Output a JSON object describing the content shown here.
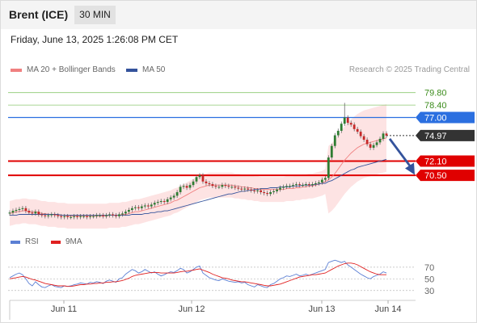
{
  "header": {
    "instrument": "Brent (ICE)",
    "timeframe": "30 MIN"
  },
  "datetime": "Friday, June 13, 2025 1:26:08 PM CET",
  "legend": {
    "ma20": {
      "label": "MA 20 + Bollinger Bands",
      "color": "#f08080"
    },
    "ma50": {
      "label": "MA 50",
      "color": "#34539c"
    }
  },
  "copyright": "Research © 2025 Trading Central",
  "rsi_legend": {
    "rsi": {
      "label": "RSI",
      "color": "#5b7fd4"
    },
    "ma9": {
      "label": "9MA",
      "color": "#e02020"
    }
  },
  "chart_data": [
    {
      "type": "candlestick",
      "title": "",
      "x_ticks": [
        "Jun 11",
        "Jun 12",
        "Jun 13",
        "Jun 14"
      ],
      "ylim": [
        64.6,
        81.5
      ],
      "price_levels": [
        {
          "value": 79.8,
          "label": "79.80",
          "kind": "target",
          "color": "#3c8c1c"
        },
        {
          "value": 78.4,
          "label": "78.40",
          "kind": "target",
          "color": "#3c8c1c"
        },
        {
          "value": 77.0,
          "label": "77.00",
          "kind": "pivot",
          "color": "#2b6fe0"
        },
        {
          "value": 74.97,
          "label": "74.97",
          "kind": "last",
          "color": "#333333"
        },
        {
          "value": 72.1,
          "label": "72.10",
          "kind": "support",
          "color": "#e00000"
        },
        {
          "value": 70.5,
          "label": "70.50",
          "kind": "support",
          "color": "#e00000"
        }
      ],
      "close": [
        66.3,
        66.5,
        66.6,
        66.7,
        66.8,
        66.5,
        66.3,
        66.2,
        66.4,
        66.1,
        66.0,
        65.9,
        66.0,
        66.1,
        66.0,
        65.9,
        65.8,
        65.9,
        65.8,
        65.8,
        65.9,
        65.8,
        65.9,
        65.9,
        65.8,
        65.9,
        65.9,
        66.0,
        66.0,
        65.9,
        66.0,
        66.1,
        66.0,
        65.9,
        66.1,
        66.2,
        66.4,
        66.6,
        66.8,
        66.9,
        66.8,
        67.0,
        67.1,
        67.0,
        67.2,
        67.4,
        67.5,
        67.6,
        67.5,
        67.8,
        68.0,
        68.2,
        68.6,
        69.2,
        69.3,
        69.1,
        69.4,
        69.8,
        70.3,
        70.5,
        69.8,
        69.6,
        69.5,
        69.3,
        69.2,
        69.2,
        69.4,
        69.3,
        69.2,
        69.2,
        69.1,
        69.0,
        68.9,
        69.0,
        68.9,
        68.8,
        68.7,
        68.8,
        68.6,
        68.5,
        68.4,
        68.6,
        68.7,
        68.9,
        69.1,
        69.2,
        69.3,
        69.3,
        69.4,
        69.5,
        69.4,
        69.4,
        69.5,
        69.4,
        69.5,
        69.6,
        69.7,
        70.0,
        70.2,
        72.5,
        73.8,
        75.0,
        75.5,
        76.3,
        77.0,
        76.4,
        76.2,
        75.7,
        75.4,
        74.9,
        74.5,
        74.0,
        73.6,
        73.9,
        74.2,
        74.6,
        75.2,
        74.97
      ],
      "ma20": [
        66.2,
        66.3,
        66.4,
        66.4,
        66.5,
        66.5,
        66.4,
        66.4,
        66.4,
        66.3,
        66.2,
        66.2,
        66.1,
        66.1,
        66.1,
        66.0,
        66.0,
        66.0,
        65.9,
        65.9,
        65.9,
        65.9,
        65.9,
        65.9,
        65.9,
        65.9,
        65.9,
        65.9,
        65.9,
        65.9,
        65.9,
        66.0,
        66.0,
        66.0,
        66.0,
        66.1,
        66.1,
        66.2,
        66.3,
        66.4,
        66.4,
        66.5,
        66.6,
        66.7,
        66.8,
        66.9,
        67.0,
        67.1,
        67.2,
        67.3,
        67.4,
        67.6,
        67.7,
        67.9,
        68.1,
        68.3,
        68.5,
        68.7,
        68.9,
        69.1,
        69.2,
        69.3,
        69.4,
        69.4,
        69.4,
        69.4,
        69.4,
        69.4,
        69.4,
        69.4,
        69.3,
        69.3,
        69.2,
        69.2,
        69.1,
        69.1,
        69.0,
        69.0,
        68.9,
        68.9,
        68.9,
        68.9,
        68.9,
        68.9,
        68.9,
        68.9,
        69.0,
        69.0,
        69.0,
        69.1,
        69.1,
        69.2,
        69.2,
        69.3,
        69.3,
        69.4,
        69.5,
        69.6,
        69.8,
        70.0,
        70.3,
        70.7,
        71.2,
        71.7,
        72.2,
        72.6,
        73.0,
        73.3,
        73.6,
        73.8,
        74.0,
        74.1,
        74.2,
        74.3,
        74.4,
        74.5,
        74.6,
        74.7
      ],
      "ma50": [
        66.0,
        66.0,
        66.0,
        66.1,
        66.1,
        66.1,
        66.1,
        66.1,
        66.1,
        66.1,
        66.1,
        66.1,
        66.1,
        66.1,
        66.1,
        66.1,
        66.0,
        66.0,
        66.0,
        66.0,
        66.0,
        66.0,
        66.0,
        66.0,
        66.0,
        66.0,
        66.0,
        66.0,
        66.0,
        66.0,
        66.0,
        66.0,
        66.0,
        66.0,
        66.0,
        66.0,
        66.0,
        66.0,
        66.1,
        66.1,
        66.1,
        66.1,
        66.2,
        66.2,
        66.3,
        66.3,
        66.4,
        66.4,
        66.5,
        66.5,
        66.6,
        66.7,
        66.8,
        66.9,
        67.0,
        67.1,
        67.2,
        67.3,
        67.4,
        67.5,
        67.6,
        67.7,
        67.8,
        67.9,
        68.0,
        68.1,
        68.2,
        68.3,
        68.4,
        68.4,
        68.5,
        68.6,
        68.7,
        68.7,
        68.8,
        68.8,
        68.9,
        68.9,
        69.0,
        69.0,
        69.0,
        69.1,
        69.1,
        69.1,
        69.2,
        69.2,
        69.2,
        69.2,
        69.3,
        69.3,
        69.3,
        69.4,
        69.4,
        69.4,
        69.4,
        69.5,
        69.5,
        69.6,
        69.6,
        69.8,
        69.9,
        70.1,
        70.3,
        70.5,
        70.7,
        70.9,
        71.1,
        71.2,
        71.4,
        71.5,
        71.6,
        71.7,
        71.8,
        71.9,
        72.0,
        72.1,
        72.2,
        72.3
      ]
    },
    {
      "type": "line",
      "title": "RSI",
      "x_ticks": [
        "Jun 11",
        "Jun 12",
        "Jun 13",
        "Jun 14"
      ],
      "ylim": [
        20,
        85
      ],
      "y_ticks": [
        70,
        50,
        30
      ],
      "series": [
        {
          "name": "RSI",
          "color": "#5b7fd4",
          "values": [
            52,
            55,
            58,
            60,
            57,
            50,
            42,
            38,
            45,
            40,
            36,
            35,
            38,
            40,
            37,
            36,
            35,
            38,
            37,
            38,
            40,
            41,
            43,
            42,
            41,
            44,
            43,
            45,
            44,
            42,
            46,
            48,
            46,
            44,
            50,
            52,
            58,
            62,
            66,
            64,
            60,
            62,
            66,
            63,
            60,
            62,
            58,
            55,
            57,
            60,
            62,
            61,
            64,
            68,
            66,
            60,
            62,
            66,
            70,
            72,
            60,
            56,
            52,
            50,
            48,
            47,
            50,
            48,
            46,
            45,
            44,
            45,
            43,
            44,
            40,
            38,
            36,
            40,
            38,
            36,
            35,
            40,
            42,
            46,
            50,
            52,
            55,
            54,
            56,
            58,
            55,
            56,
            58,
            56,
            58,
            60,
            62,
            64,
            66,
            78,
            80,
            82,
            80,
            78,
            80,
            74,
            70,
            66,
            62,
            58,
            55,
            52,
            50,
            54,
            56,
            58,
            62,
            60
          ]
        },
        {
          "name": "9MA",
          "color": "#e02020",
          "values": [
            50,
            51,
            52,
            53,
            54,
            53,
            51,
            49,
            48,
            46,
            44,
            42,
            41,
            40,
            39,
            38,
            38,
            38,
            37,
            37,
            38,
            39,
            40,
            40,
            41,
            41,
            42,
            42,
            43,
            43,
            44,
            44,
            45,
            45,
            46,
            47,
            49,
            51,
            54,
            56,
            57,
            58,
            59,
            60,
            61,
            61,
            61,
            60,
            60,
            60,
            60,
            60,
            61,
            62,
            63,
            63,
            64,
            65,
            66,
            67,
            65,
            63,
            61,
            58,
            56,
            54,
            52,
            51,
            50,
            48,
            47,
            46,
            45,
            45,
            44,
            43,
            42,
            41,
            40,
            39,
            38,
            38,
            39,
            40,
            41,
            43,
            45,
            47,
            49,
            51,
            53,
            54,
            55,
            56,
            57,
            57,
            58,
            59,
            60,
            63,
            66,
            69,
            72,
            74,
            76,
            77,
            77,
            76,
            74,
            71,
            68,
            65,
            62,
            60,
            58,
            57,
            57,
            57
          ]
        }
      ]
    }
  ]
}
